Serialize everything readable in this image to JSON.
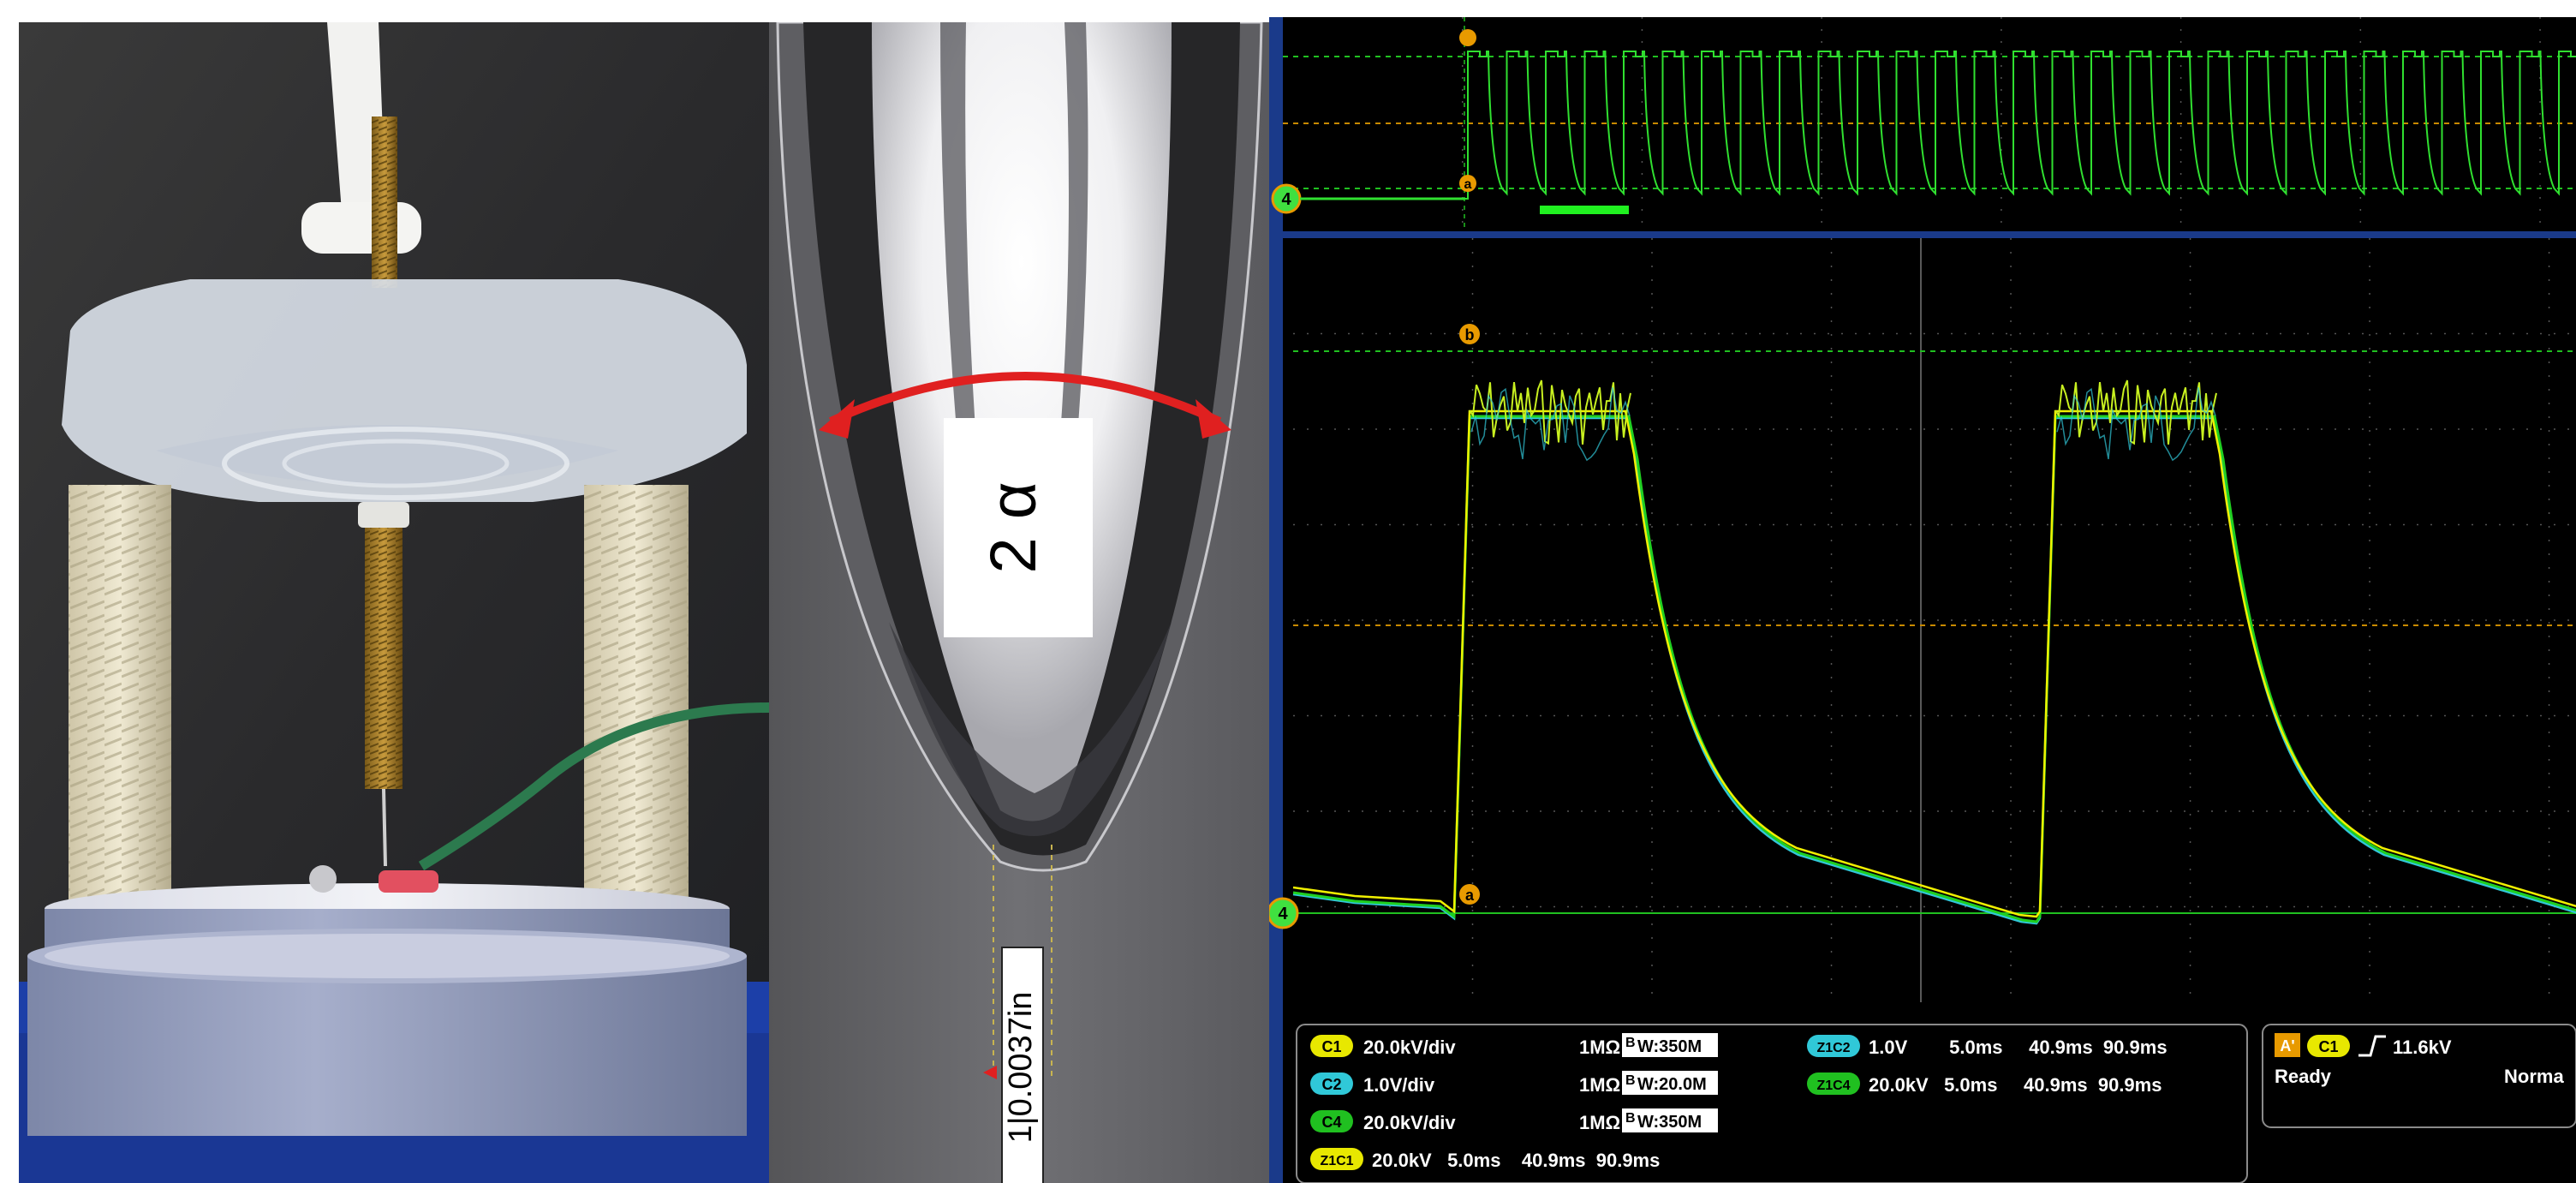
{
  "micrograph": {
    "angle_label": "2 α",
    "scale_label": "1|0.0037in"
  },
  "scope": {
    "ch4_marker": "4",
    "marker_a": "a",
    "marker_b": "b",
    "channels": [
      {
        "badge": "C1",
        "scale": "20.0kV/div",
        "impedance": "1MΩ",
        "bw": "W:350M",
        "badge_color": "#e8e800"
      },
      {
        "badge": "C2",
        "scale": "1.0V/div",
        "impedance": "1MΩ",
        "bw": "W:20.0M",
        "badge_color": "#30c8d8"
      },
      {
        "badge": "C4",
        "scale": "20.0kV/div",
        "impedance": "1MΩ",
        "bw": "W:350M",
        "badge_color": "#20c020"
      }
    ],
    "zooms": [
      {
        "badge": "Z1C1",
        "values": "20.0kV   5.0ms    40.9ms  90.9ms",
        "badge_color": "#e8e800"
      },
      {
        "badge": "Z1C2",
        "values": "1.0V        5.0ms     40.9ms  90.9ms",
        "badge_color": "#30c8d8"
      },
      {
        "badge": "Z1C4",
        "values": "20.0kV   5.0ms     40.9ms  90.9ms",
        "badge_color": "#20c020"
      }
    ],
    "trigger": {
      "mode_badge": "A'",
      "source_badge": "C1",
      "level": "11.6kV",
      "status": "Ready",
      "trig_mode": "Norma"
    },
    "colors": {
      "ch1": "#f0f000",
      "ch2": "#30c8d8",
      "ch4": "#20d020",
      "cursor": "#c88a00",
      "grid": "#6a6a6a"
    }
  }
}
